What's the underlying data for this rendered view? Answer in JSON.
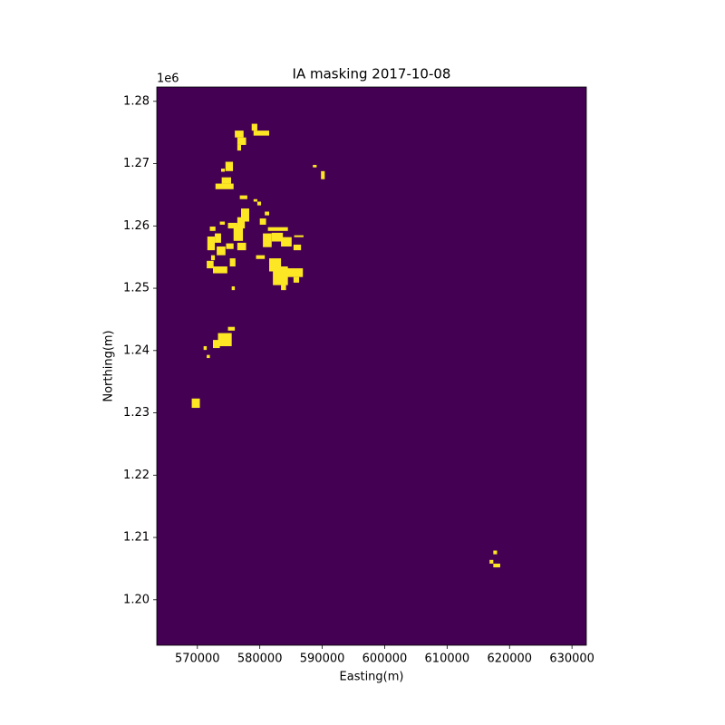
{
  "chart_data": {
    "type": "mask",
    "title": "IA masking 2017-10-08",
    "xlabel": "Easting(m)",
    "ylabel": "Northing(m)",
    "y_offset_label": "1e6",
    "background_color": "#440154",
    "mask_color": "#fde725",
    "xlim": [
      563500,
      632300
    ],
    "ylim": [
      1192700,
      1282300
    ],
    "xticks": [
      570000,
      580000,
      590000,
      600000,
      610000,
      620000,
      630000
    ],
    "yticks": [
      {
        "value": 1200000,
        "label": "1.20"
      },
      {
        "value": 1210000,
        "label": "1.21"
      },
      {
        "value": 1220000,
        "label": "1.22"
      },
      {
        "value": 1230000,
        "label": "1.23"
      },
      {
        "value": 1240000,
        "label": "1.24"
      },
      {
        "value": 1250000,
        "label": "1.25"
      },
      {
        "value": 1260000,
        "label": "1.26"
      },
      {
        "value": 1270000,
        "label": "1.27"
      },
      {
        "value": 1280000,
        "label": "1.28"
      }
    ],
    "masked_areas": [
      [
        576000,
        577400,
        1274200,
        1275300
      ],
      [
        576400,
        577800,
        1273000,
        1274200
      ],
      [
        576400,
        577000,
        1272100,
        1273000
      ],
      [
        578700,
        579600,
        1275300,
        1276400
      ],
      [
        579000,
        581500,
        1274500,
        1275300
      ],
      [
        588500,
        589100,
        1269400,
        1269800
      ],
      [
        589800,
        590400,
        1267500,
        1268800
      ],
      [
        574500,
        575700,
        1268800,
        1270300
      ],
      [
        573800,
        574400,
        1268700,
        1269200
      ],
      [
        572900,
        575800,
        1265900,
        1266800
      ],
      [
        573900,
        575400,
        1266800,
        1267800
      ],
      [
        576800,
        578000,
        1264300,
        1264900
      ],
      [
        579000,
        579600,
        1263900,
        1264300
      ],
      [
        579600,
        580200,
        1263300,
        1263900
      ],
      [
        577000,
        578300,
        1260700,
        1262800
      ],
      [
        576400,
        577600,
        1259600,
        1261400
      ],
      [
        575800,
        577300,
        1257600,
        1260200
      ],
      [
        574900,
        576400,
        1259600,
        1260500
      ],
      [
        580800,
        581500,
        1261700,
        1262300
      ],
      [
        580000,
        581000,
        1260200,
        1261200
      ],
      [
        581300,
        584500,
        1259200,
        1259800
      ],
      [
        580500,
        581900,
        1256600,
        1258800
      ],
      [
        581900,
        583700,
        1257500,
        1258900
      ],
      [
        583400,
        585100,
        1256700,
        1258200
      ],
      [
        585500,
        587000,
        1258200,
        1258500
      ],
      [
        585400,
        586600,
        1256100,
        1257000
      ],
      [
        571600,
        572800,
        1256100,
        1258300
      ],
      [
        572800,
        573800,
        1257300,
        1258800
      ],
      [
        573100,
        574500,
        1255300,
        1256700
      ],
      [
        574600,
        575800,
        1256300,
        1257200
      ],
      [
        576400,
        577800,
        1256100,
        1257300
      ],
      [
        571500,
        572600,
        1253200,
        1254400
      ],
      [
        572500,
        574800,
        1252400,
        1253500
      ],
      [
        575200,
        576100,
        1253500,
        1254800
      ],
      [
        579400,
        580800,
        1254700,
        1255300
      ],
      [
        581500,
        583400,
        1252700,
        1254800
      ],
      [
        582100,
        584500,
        1250500,
        1253500
      ],
      [
        583800,
        586900,
        1251800,
        1253200
      ],
      [
        585400,
        586300,
        1250900,
        1251800
      ],
      [
        583400,
        584200,
        1249700,
        1250800
      ],
      [
        575500,
        576000,
        1249700,
        1250300
      ],
      [
        573300,
        575500,
        1240700,
        1242800
      ],
      [
        572500,
        573600,
        1240400,
        1241700
      ],
      [
        574900,
        576000,
        1243200,
        1243800
      ],
      [
        571000,
        571500,
        1240100,
        1240700
      ],
      [
        571500,
        572000,
        1238800,
        1239300
      ],
      [
        569100,
        570400,
        1230800,
        1232300
      ],
      [
        617400,
        618000,
        1207300,
        1207900
      ],
      [
        616800,
        617400,
        1205800,
        1206400
      ],
      [
        617400,
        618500,
        1205200,
        1205800
      ],
      [
        572000,
        572900,
        1259200,
        1259900
      ],
      [
        573600,
        574400,
        1260200,
        1260700
      ],
      [
        572200,
        572800,
        1254500,
        1255300
      ]
    ]
  }
}
